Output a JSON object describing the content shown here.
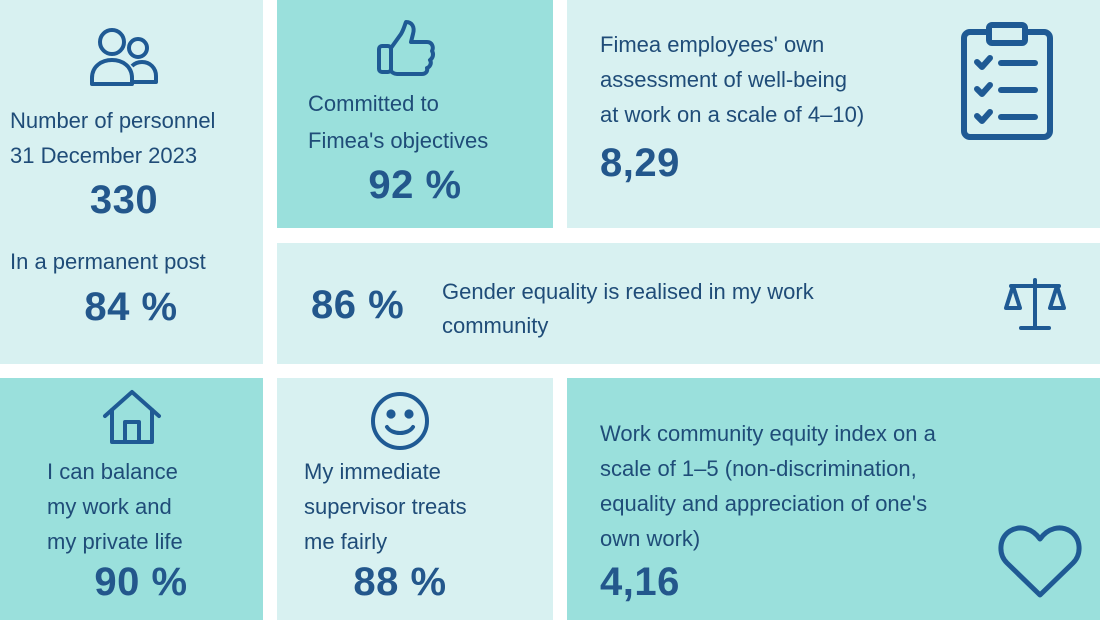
{
  "personnel": {
    "label_line1": "Number of personnel",
    "label_line2": "31 December 2023",
    "count": "330",
    "permanent_label": "In a permanent post",
    "permanent_value": "84 %"
  },
  "committed": {
    "label_line1": "Committed to",
    "label_line2": "Fimea's objectives",
    "value": "92 %"
  },
  "wellbeing": {
    "label_line1": "Fimea employees' own",
    "label_line2": "assessment of well-being",
    "label_line3": "at work on a scale of 4–10)",
    "value": "8,29"
  },
  "gender": {
    "value": "86 %",
    "label_line1": "Gender equality is realised in my work",
    "label_line2": "community"
  },
  "balance": {
    "label_line1": "I can balance",
    "label_line2": "my work and",
    "label_line3": "my private life",
    "value": "90 %"
  },
  "supervisor": {
    "label_line1": "My immediate",
    "label_line2": "supervisor treats",
    "label_line3": "me fairly",
    "value": "88 %"
  },
  "equity": {
    "label_line1": "Work community equity index on a",
    "label_line2": "scale of 1–5 (non-discrimination,",
    "label_line3": "equality and appreciation of one's",
    "label_line4": "own work)",
    "value": "4,16"
  },
  "icons": {
    "personnel": "people-icon",
    "committed": "thumbs-up-icon",
    "wellbeing": "clipboard-checklist-icon",
    "gender": "scales-icon",
    "balance": "house-icon",
    "supervisor": "smiley-icon",
    "equity": "heart-icon"
  },
  "colors": {
    "light_tile": "#d8f1f1",
    "teal_tile": "#9ae0dc",
    "text": "#1f4c78",
    "value": "#23578c"
  }
}
